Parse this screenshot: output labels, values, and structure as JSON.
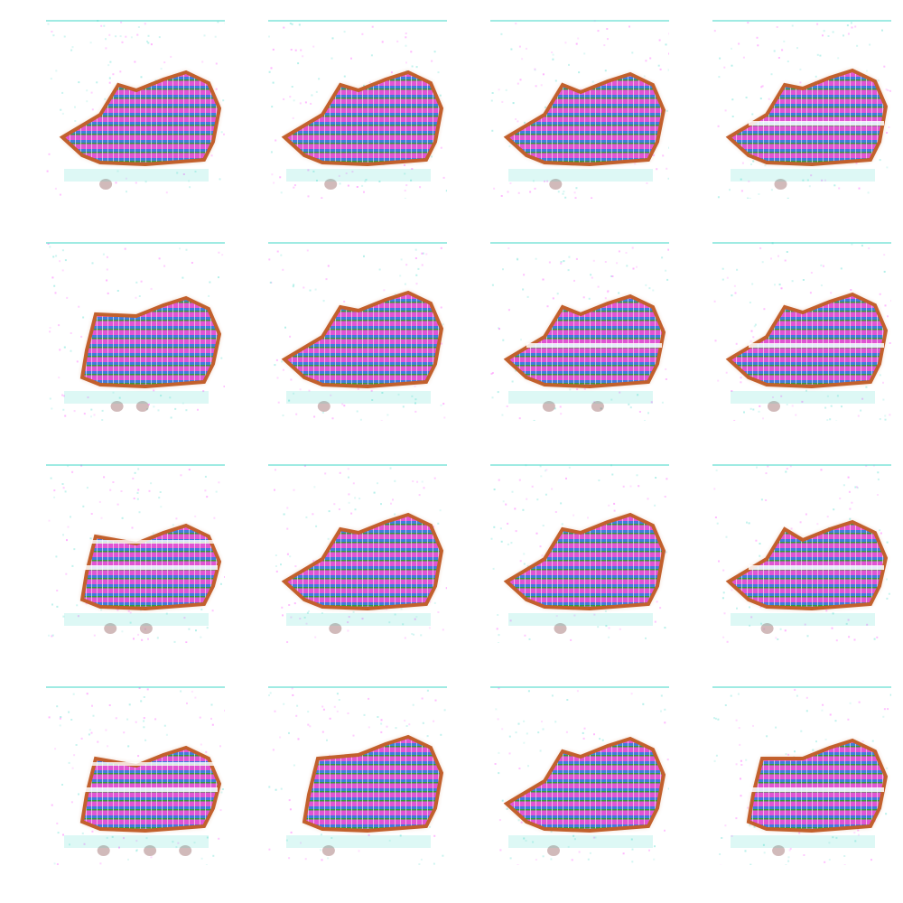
{
  "figure": {
    "rows": 4,
    "cols": 4,
    "background": "#ffffff",
    "palette": [
      "#e050d8",
      "#3a78e0",
      "#2a9a3a",
      "#c05a24",
      "#40d8c8",
      "#ff40ff",
      "#7a3a3a"
    ],
    "samples": [
      {
        "shape": "wedge",
        "head": 0.55,
        "nose": 1,
        "split": 0,
        "drips": 1
      },
      {
        "shape": "wedge",
        "head": 0.55,
        "nose": 1,
        "split": 0,
        "drips": 1
      },
      {
        "shape": "wedge",
        "head": 0.5,
        "nose": 1,
        "split": 0,
        "drips": 1
      },
      {
        "shape": "split",
        "head": 0.6,
        "nose": 1,
        "split": 1,
        "drips": 1
      },
      {
        "shape": "blob",
        "head": 0.45,
        "nose": 0,
        "split": 0,
        "drips": 2
      },
      {
        "shape": "wedge",
        "head": 0.6,
        "nose": 1,
        "split": 0,
        "drips": 1
      },
      {
        "shape": "split",
        "head": 0.5,
        "nose": 1,
        "split": 1,
        "drips": 2
      },
      {
        "shape": "split",
        "head": 0.55,
        "nose": 1,
        "split": 1,
        "drips": 1
      },
      {
        "shape": "bars",
        "head": 0.3,
        "nose": 0,
        "split": 1,
        "drips": 2
      },
      {
        "shape": "wedge",
        "head": 0.6,
        "nose": 1,
        "split": 0,
        "drips": 1
      },
      {
        "shape": "wedge",
        "head": 0.6,
        "nose": 1,
        "split": 0,
        "drips": 1
      },
      {
        "shape": "split",
        "head": 0.4,
        "nose": 1,
        "split": 1,
        "drips": 1
      },
      {
        "shape": "bars",
        "head": 0.3,
        "nose": 0,
        "split": 1,
        "drips": 3
      },
      {
        "shape": "wedge",
        "head": 0.6,
        "nose": 0,
        "split": 0,
        "drips": 1
      },
      {
        "shape": "wedge",
        "head": 0.55,
        "nose": 1,
        "split": 0,
        "drips": 1
      },
      {
        "shape": "split",
        "head": 0.5,
        "nose": 0,
        "split": 1,
        "drips": 1
      }
    ]
  }
}
